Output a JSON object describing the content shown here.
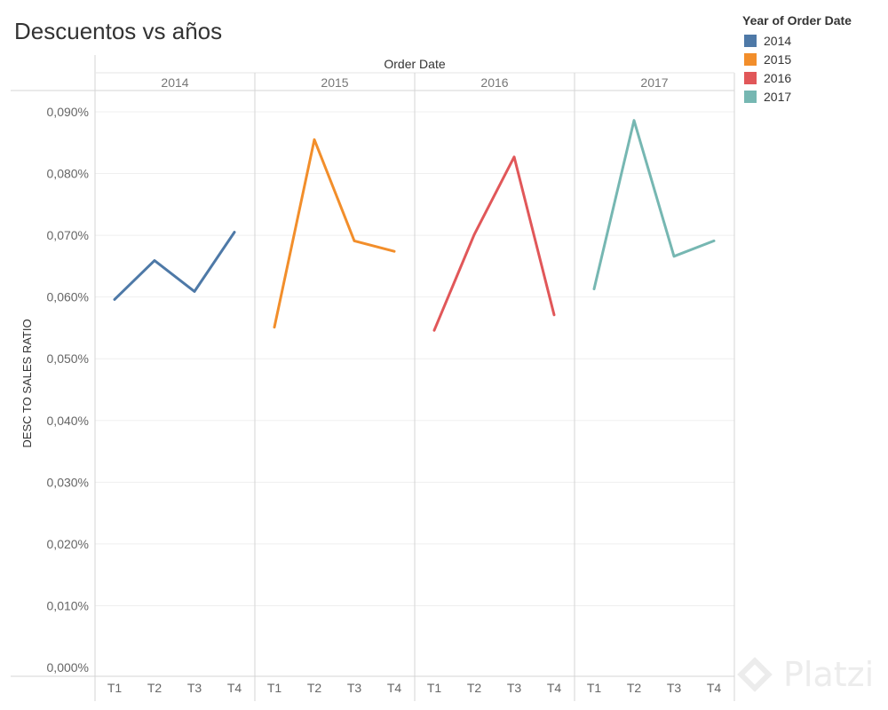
{
  "title": "Descuentos vs años",
  "watermark": "Platzi",
  "legend": {
    "title": "Year of Order Date",
    "items": [
      {
        "label": "2014",
        "color": "#4e79a7"
      },
      {
        "label": "2015",
        "color": "#f28e2b"
      },
      {
        "label": "2016",
        "color": "#e15759"
      },
      {
        "label": "2017",
        "color": "#76b7b2"
      }
    ]
  },
  "chart_data": {
    "type": "line",
    "title": "Descuentos vs años",
    "xlabel": "Order Date",
    "ylabel": "DESC TO SALES RATIO",
    "ylim": [
      0,
      0.09
    ],
    "yticks": [
      0,
      0.01,
      0.02,
      0.03,
      0.04,
      0.05,
      0.06,
      0.07,
      0.08,
      0.09
    ],
    "ytick_labels": [
      "0,000%",
      "0,010%",
      "0,020%",
      "0,030%",
      "0,040%",
      "0,050%",
      "0,060%",
      "0,070%",
      "0,080%",
      "0,090%"
    ],
    "panels": [
      "2014",
      "2015",
      "2016",
      "2017"
    ],
    "categories": [
      "T1",
      "T2",
      "T3",
      "T4"
    ],
    "series": [
      {
        "name": "2014",
        "color": "#4e79a7",
        "values": [
          0.0596,
          0.0659,
          0.0609,
          0.0705
        ]
      },
      {
        "name": "2015",
        "color": "#f28e2b",
        "values": [
          0.0551,
          0.0855,
          0.0691,
          0.0674
        ]
      },
      {
        "name": "2016",
        "color": "#e15759",
        "values": [
          0.0546,
          0.0701,
          0.0827,
          0.0571
        ]
      },
      {
        "name": "2017",
        "color": "#76b7b2",
        "values": [
          0.0613,
          0.0886,
          0.0666,
          0.0691
        ]
      }
    ],
    "grid": true,
    "legend_position": "right"
  }
}
